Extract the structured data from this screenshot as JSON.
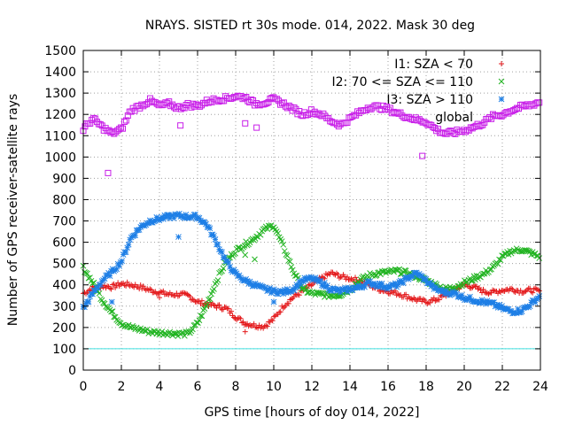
{
  "chart_data": {
    "type": "scatter",
    "title": "NRAYS. SISTED rt 30s mode. 014, 2022. Mask 30 deg",
    "xlabel": "GPS time [hours of doy 014, 2022]",
    "ylabel": "Number of GPS receiver-satellite rays",
    "xlim": [
      0,
      24
    ],
    "ylim": [
      0,
      1500
    ],
    "xticks": [
      "0",
      "2",
      "4",
      "6",
      "8",
      "10",
      "12",
      "14",
      "16",
      "18",
      "20",
      "22",
      "24"
    ],
    "yticks": [
      "0",
      "100",
      "200",
      "300",
      "400",
      "500",
      "600",
      "700",
      "800",
      "900",
      "1000",
      "1100",
      "1200",
      "1300",
      "1400",
      "1500"
    ],
    "grid": true,
    "legend_position": "top-right",
    "threshold_line": {
      "y": 100,
      "color": "#40e0e0"
    },
    "series": [
      {
        "name": "I1: SZA < 70",
        "marker": "plus",
        "color": "#e41a1c",
        "points": [
          [
            0,
            360
          ],
          [
            0.5,
            385
          ],
          [
            1,
            395
          ],
          [
            1.5,
            390
          ],
          [
            2,
            405
          ],
          [
            2.5,
            400
          ],
          [
            3,
            390
          ],
          [
            3.5,
            375
          ],
          [
            4,
            365
          ],
          [
            4.5,
            355
          ],
          [
            5,
            355
          ],
          [
            5.5,
            350
          ],
          [
            6,
            320
          ],
          [
            6.5,
            310
          ],
          [
            7,
            300
          ],
          [
            7.5,
            290
          ],
          [
            8,
            250
          ],
          [
            8.5,
            220
          ],
          [
            9,
            210
          ],
          [
            9.5,
            205
          ],
          [
            10,
            240
          ],
          [
            10.5,
            300
          ],
          [
            11,
            340
          ],
          [
            11.5,
            370
          ],
          [
            12,
            400
          ],
          [
            12.5,
            430
          ],
          [
            13,
            455
          ],
          [
            13.5,
            440
          ],
          [
            14,
            430
          ],
          [
            14.5,
            420
          ],
          [
            15,
            400
          ],
          [
            15.5,
            380
          ],
          [
            16,
            370
          ],
          [
            16.5,
            360
          ],
          [
            17,
            345
          ],
          [
            17.5,
            330
          ],
          [
            18,
            320
          ],
          [
            18.5,
            330
          ],
          [
            19,
            350
          ],
          [
            19.5,
            380
          ],
          [
            20,
            400
          ],
          [
            20.5,
            390
          ],
          [
            21,
            370
          ],
          [
            21.5,
            365
          ],
          [
            22,
            375
          ],
          [
            22.5,
            380
          ],
          [
            23,
            370
          ],
          [
            23.5,
            375
          ],
          [
            24,
            370
          ]
        ],
        "outliers": [
          [
            4,
            340
          ],
          [
            8.5,
            180
          ]
        ]
      },
      {
        "name": "I2: 70 <= SZA <= 110",
        "marker": "cross",
        "color": "#22b422",
        "points": [
          [
            0,
            480
          ],
          [
            0.5,
            410
          ],
          [
            1,
            330
          ],
          [
            1.5,
            270
          ],
          [
            2,
            220
          ],
          [
            2.5,
            200
          ],
          [
            3,
            190
          ],
          [
            3.5,
            180
          ],
          [
            4,
            175
          ],
          [
            4.5,
            175
          ],
          [
            5,
            170
          ],
          [
            5.5,
            170
          ],
          [
            6,
            220
          ],
          [
            6.5,
            310
          ],
          [
            7,
            420
          ],
          [
            7.5,
            510
          ],
          [
            8,
            560
          ],
          [
            8.5,
            590
          ],
          [
            9,
            620
          ],
          [
            9.5,
            660
          ],
          [
            10,
            680
          ],
          [
            10.5,
            580
          ],
          [
            11,
            470
          ],
          [
            11.5,
            380
          ],
          [
            12,
            360
          ],
          [
            12.5,
            355
          ],
          [
            13,
            350
          ],
          [
            13.5,
            355
          ],
          [
            14,
            380
          ],
          [
            14.5,
            420
          ],
          [
            15,
            445
          ],
          [
            15.5,
            455
          ],
          [
            16,
            460
          ],
          [
            16.5,
            465
          ],
          [
            17,
            455
          ],
          [
            17.5,
            440
          ],
          [
            18,
            420
          ],
          [
            18.5,
            400
          ],
          [
            19,
            380
          ],
          [
            19.5,
            390
          ],
          [
            20,
            410
          ],
          [
            20.5,
            430
          ],
          [
            21,
            450
          ],
          [
            21.5,
            480
          ],
          [
            22,
            530
          ],
          [
            22.5,
            560
          ],
          [
            23,
            565
          ],
          [
            23.5,
            550
          ],
          [
            24,
            530
          ]
        ],
        "outliers": [
          [
            9,
            520
          ],
          [
            8.5,
            540
          ]
        ]
      },
      {
        "name": "I3: SZA > 110",
        "marker": "star",
        "color": "#1e7fe6",
        "points": [
          [
            0,
            290
          ],
          [
            0.5,
            360
          ],
          [
            1,
            420
          ],
          [
            1.5,
            460
          ],
          [
            2,
            510
          ],
          [
            2.5,
            620
          ],
          [
            3,
            670
          ],
          [
            3.5,
            700
          ],
          [
            4,
            710
          ],
          [
            4.5,
            720
          ],
          [
            5,
            725
          ],
          [
            5.5,
            720
          ],
          [
            6,
            720
          ],
          [
            6.5,
            680
          ],
          [
            7,
            600
          ],
          [
            7.5,
            510
          ],
          [
            8,
            450
          ],
          [
            8.5,
            420
          ],
          [
            9,
            400
          ],
          [
            9.5,
            380
          ],
          [
            10,
            370
          ],
          [
            10.5,
            365
          ],
          [
            11,
            380
          ],
          [
            11.5,
            420
          ],
          [
            12,
            430
          ],
          [
            12.5,
            410
          ],
          [
            13,
            380
          ],
          [
            13.5,
            370
          ],
          [
            14,
            380
          ],
          [
            14.5,
            390
          ],
          [
            15,
            410
          ],
          [
            15.5,
            400
          ],
          [
            16,
            390
          ],
          [
            16.5,
            400
          ],
          [
            17,
            430
          ],
          [
            17.5,
            455
          ],
          [
            18,
            420
          ],
          [
            18.5,
            380
          ],
          [
            19,
            365
          ],
          [
            19.5,
            360
          ],
          [
            20,
            340
          ],
          [
            20.5,
            330
          ],
          [
            21,
            320
          ],
          [
            21.5,
            310
          ],
          [
            22,
            290
          ],
          [
            22.5,
            275
          ],
          [
            23,
            280
          ],
          [
            23.5,
            310
          ],
          [
            24,
            350
          ]
        ],
        "outliers": [
          [
            1.5,
            320
          ],
          [
            5,
            625
          ],
          [
            10,
            320
          ]
        ]
      },
      {
        "name": "global",
        "marker": "square",
        "color": "#c81ee8",
        "points": [
          [
            0,
            1130
          ],
          [
            0.5,
            1180
          ],
          [
            1,
            1140
          ],
          [
            1.5,
            1110
          ],
          [
            2,
            1130
          ],
          [
            2.5,
            1220
          ],
          [
            3,
            1240
          ],
          [
            3.5,
            1265
          ],
          [
            4,
            1240
          ],
          [
            4.5,
            1250
          ],
          [
            5,
            1230
          ],
          [
            5.5,
            1245
          ],
          [
            6,
            1240
          ],
          [
            6.5,
            1260
          ],
          [
            7,
            1270
          ],
          [
            7.5,
            1275
          ],
          [
            8,
            1285
          ],
          [
            8.5,
            1280
          ],
          [
            9,
            1250
          ],
          [
            9.5,
            1255
          ],
          [
            10,
            1270
          ],
          [
            10.5,
            1250
          ],
          [
            11,
            1225
          ],
          [
            11.5,
            1200
          ],
          [
            12,
            1215
          ],
          [
            12.5,
            1200
          ],
          [
            13,
            1170
          ],
          [
            13.5,
            1150
          ],
          [
            14,
            1180
          ],
          [
            14.5,
            1210
          ],
          [
            15,
            1235
          ],
          [
            15.5,
            1235
          ],
          [
            16,
            1225
          ],
          [
            16.5,
            1205
          ],
          [
            17,
            1190
          ],
          [
            17.5,
            1175
          ],
          [
            18,
            1165
          ],
          [
            18.5,
            1130
          ],
          [
            19,
            1110
          ],
          [
            19.5,
            1115
          ],
          [
            20,
            1125
          ],
          [
            20.5,
            1140
          ],
          [
            21,
            1160
          ],
          [
            21.5,
            1190
          ],
          [
            22,
            1200
          ],
          [
            22.5,
            1220
          ],
          [
            23,
            1235
          ],
          [
            23.5,
            1245
          ],
          [
            24,
            1260
          ]
        ],
        "outliers": [
          [
            1.3,
            925
          ],
          [
            5.1,
            1148
          ],
          [
            8.5,
            1158
          ],
          [
            9.1,
            1138
          ],
          [
            17.8,
            1005
          ]
        ]
      }
    ]
  }
}
